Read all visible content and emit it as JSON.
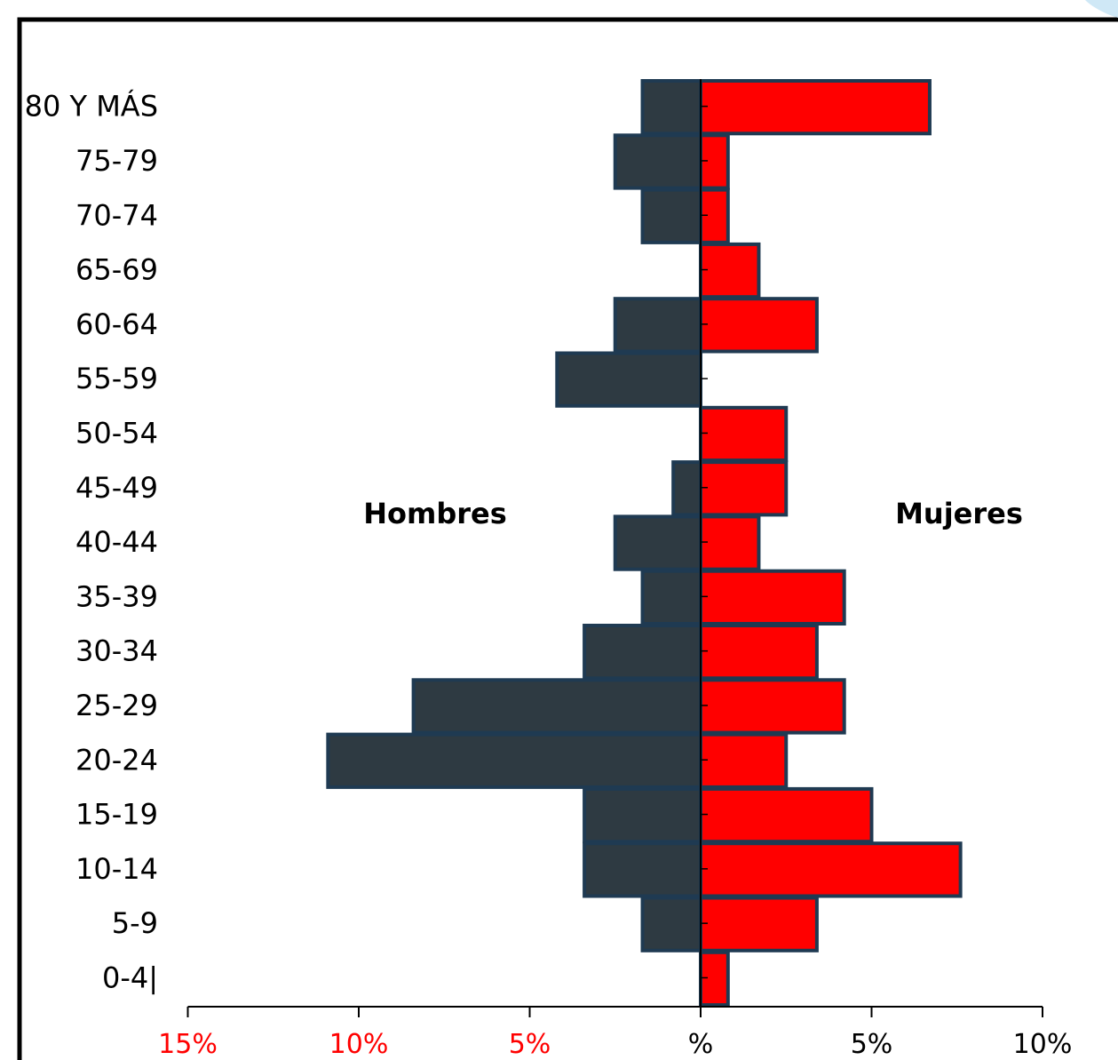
{
  "chart_data": {
    "type": "bar",
    "orientation": "horizontal",
    "layout": "population-pyramid",
    "categories": [
      "80 Y MÁS",
      "75-79",
      "70-74",
      "65-69",
      "60-64",
      "55-59",
      "50-54",
      "45-49",
      "40-44",
      "35-39",
      "30-34",
      "25-29",
      "20-24",
      "15-19",
      "10-14",
      "5-9",
      "0-4|"
    ],
    "series": [
      {
        "name": "Hombres",
        "side": "left",
        "color": "#2e3a42",
        "values": [
          1.7,
          2.5,
          1.7,
          0,
          2.5,
          4.2,
          0,
          0.8,
          2.5,
          1.7,
          3.4,
          8.4,
          10.9,
          3.4,
          3.4,
          1.7,
          0
        ]
      },
      {
        "name": "Mujeres",
        "side": "right",
        "color": "#ff0000",
        "values": [
          6.7,
          0.8,
          0.8,
          1.7,
          3.4,
          0,
          2.5,
          2.5,
          1.7,
          4.2,
          3.4,
          4.2,
          2.5,
          5.0,
          7.6,
          3.4,
          0.8
        ]
      }
    ],
    "xlim": [
      -15,
      10
    ],
    "x_ticks": [
      {
        "value": -15,
        "label": "15%",
        "color": "#ff0000"
      },
      {
        "value": -10,
        "label": "10%",
        "color": "#ff0000"
      },
      {
        "value": -5,
        "label": "5%",
        "color": "#ff0000"
      },
      {
        "value": 0,
        "label": "%",
        "color": "#000000"
      },
      {
        "value": 5,
        "label": "5%",
        "color": "#000000"
      },
      {
        "value": 10,
        "label": "10%",
        "color": "#000000"
      }
    ],
    "bar_outline_color": "#1f3a52",
    "grid": false
  }
}
